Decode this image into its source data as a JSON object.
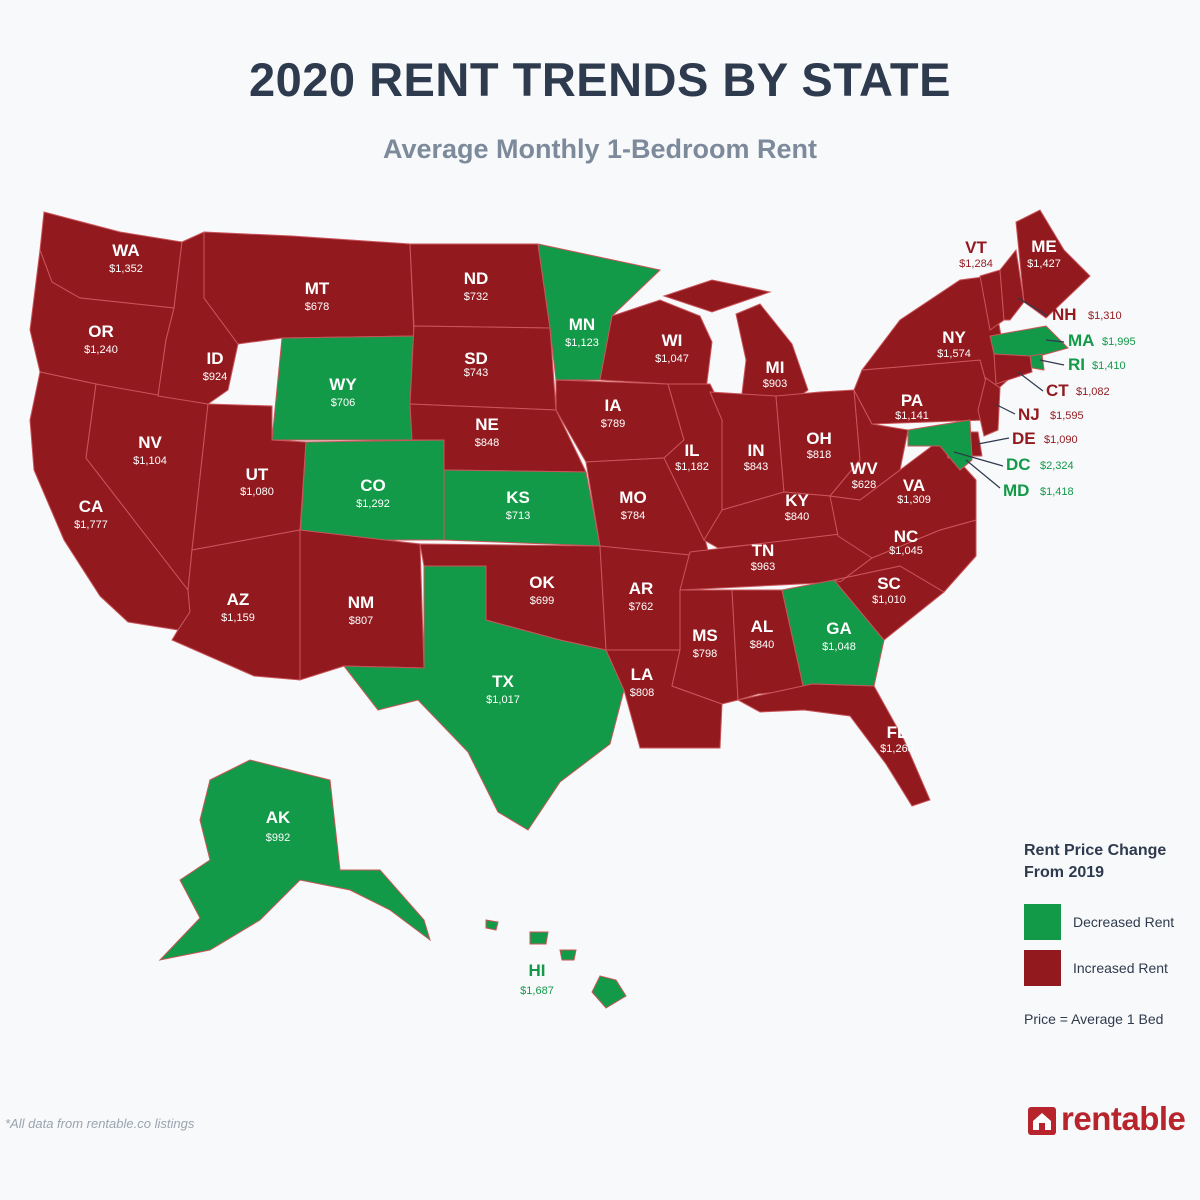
{
  "title": "2020 RENT TRENDS BY STATE",
  "subtitle": "Average Monthly 1-Bedroom Rent",
  "colors": {
    "increased": "#921a1f",
    "decreased": "#129a48",
    "background": "#f8f9fb",
    "title": "#2e3a4d",
    "brand": "#b8242b"
  },
  "legend": {
    "title": "Rent Price Change From 2019",
    "items": [
      {
        "label": "Decreased Rent",
        "status": "decreased"
      },
      {
        "label": "Increased Rent",
        "status": "increased"
      }
    ],
    "note": "Price = Average 1 Bed"
  },
  "states": [
    {
      "code": "WA",
      "rent": "$1,352",
      "status": "increased"
    },
    {
      "code": "OR",
      "rent": "$1,240",
      "status": "increased"
    },
    {
      "code": "CA",
      "rent": "$1,777",
      "status": "increased"
    },
    {
      "code": "NV",
      "rent": "$1,104",
      "status": "increased"
    },
    {
      "code": "ID",
      "rent": "$924",
      "status": "increased"
    },
    {
      "code": "MT",
      "rent": "$678",
      "status": "increased"
    },
    {
      "code": "WY",
      "rent": "$706",
      "status": "decreased"
    },
    {
      "code": "UT",
      "rent": "$1,080",
      "status": "increased"
    },
    {
      "code": "CO",
      "rent": "$1,292",
      "status": "decreased"
    },
    {
      "code": "AZ",
      "rent": "$1,159",
      "status": "increased"
    },
    {
      "code": "NM",
      "rent": "$807",
      "status": "increased"
    },
    {
      "code": "ND",
      "rent": "$732",
      "status": "increased"
    },
    {
      "code": "SD",
      "rent": "$743",
      "status": "increased"
    },
    {
      "code": "NE",
      "rent": "$848",
      "status": "increased"
    },
    {
      "code": "KS",
      "rent": "$713",
      "status": "decreased"
    },
    {
      "code": "OK",
      "rent": "$699",
      "status": "increased"
    },
    {
      "code": "TX",
      "rent": "$1,017",
      "status": "decreased"
    },
    {
      "code": "MN",
      "rent": "$1,123",
      "status": "decreased"
    },
    {
      "code": "IA",
      "rent": "$789",
      "status": "increased"
    },
    {
      "code": "MO",
      "rent": "$784",
      "status": "increased"
    },
    {
      "code": "AR",
      "rent": "$762",
      "status": "increased"
    },
    {
      "code": "LA",
      "rent": "$808",
      "status": "increased"
    },
    {
      "code": "WI",
      "rent": "$1,047",
      "status": "increased"
    },
    {
      "code": "IL",
      "rent": "$1,182",
      "status": "increased"
    },
    {
      "code": "MI",
      "rent": "$903",
      "status": "increased"
    },
    {
      "code": "IN",
      "rent": "$843",
      "status": "increased"
    },
    {
      "code": "OH",
      "rent": "$818",
      "status": "increased"
    },
    {
      "code": "KY",
      "rent": "$840",
      "status": "increased"
    },
    {
      "code": "TN",
      "rent": "$963",
      "status": "increased"
    },
    {
      "code": "MS",
      "rent": "$798",
      "status": "increased"
    },
    {
      "code": "AL",
      "rent": "$840",
      "status": "increased"
    },
    {
      "code": "GA",
      "rent": "$1,048",
      "status": "decreased"
    },
    {
      "code": "FL",
      "rent": "$1,268",
      "status": "increased"
    },
    {
      "code": "SC",
      "rent": "$1,010",
      "status": "increased"
    },
    {
      "code": "NC",
      "rent": "$1,045",
      "status": "increased"
    },
    {
      "code": "VA",
      "rent": "$1,309",
      "status": "increased"
    },
    {
      "code": "WV",
      "rent": "$628",
      "status": "increased"
    },
    {
      "code": "PA",
      "rent": "$1,141",
      "status": "increased"
    },
    {
      "code": "NY",
      "rent": "$1,574",
      "status": "increased"
    },
    {
      "code": "VT",
      "rent": "$1,284",
      "status": "increased"
    },
    {
      "code": "ME",
      "rent": "$1,427",
      "status": "increased"
    },
    {
      "code": "NH",
      "rent": "$1,310",
      "status": "increased"
    },
    {
      "code": "MA",
      "rent": "$1,995",
      "status": "decreased"
    },
    {
      "code": "RI",
      "rent": "$1,410",
      "status": "decreased"
    },
    {
      "code": "CT",
      "rent": "$1,082",
      "status": "increased"
    },
    {
      "code": "NJ",
      "rent": "$1,595",
      "status": "increased"
    },
    {
      "code": "DE",
      "rent": "$1,090",
      "status": "increased"
    },
    {
      "code": "DC",
      "rent": "$2,324",
      "status": "decreased"
    },
    {
      "code": "MD",
      "rent": "$1,418",
      "status": "decreased"
    },
    {
      "code": "AK",
      "rent": "$992",
      "status": "decreased"
    },
    {
      "code": "HI",
      "rent": "$1,687",
      "status": "decreased"
    }
  ],
  "footnote": "*All data from rentable.co listings",
  "brand": {
    "name": "rentable",
    "icon": "house-icon"
  }
}
